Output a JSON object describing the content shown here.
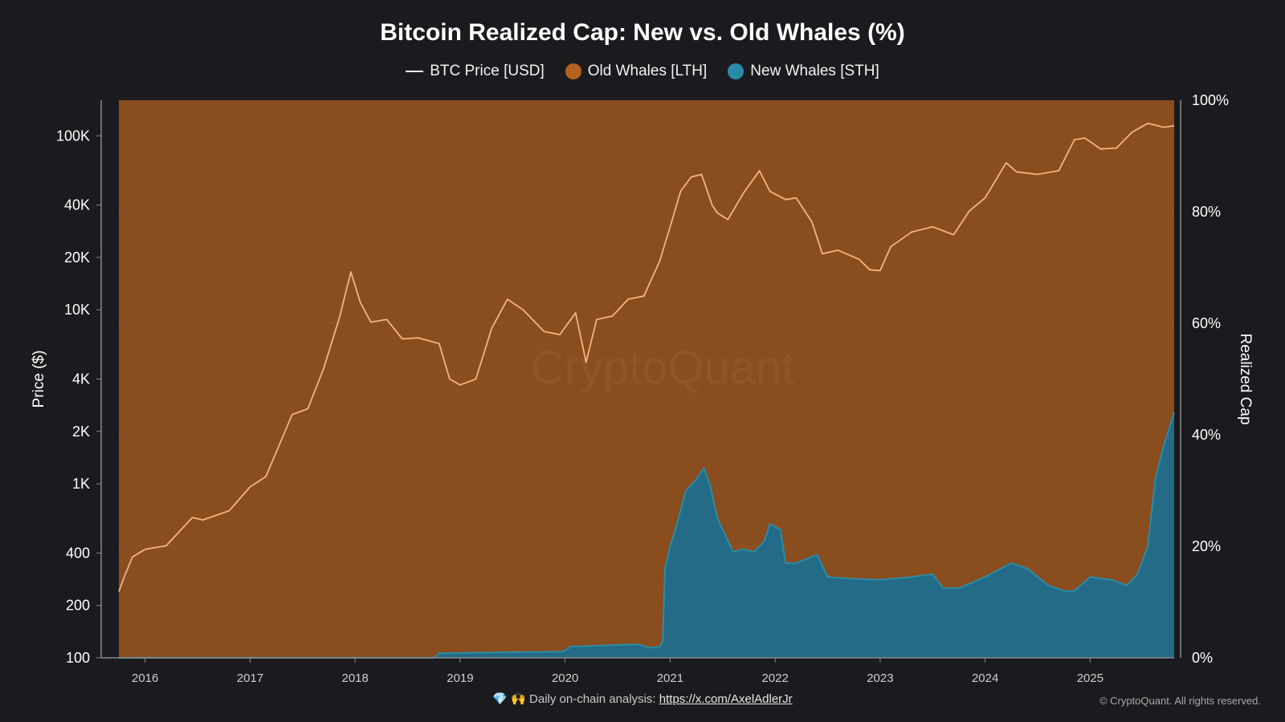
{
  "chart_data": {
    "type": "area",
    "title": "Bitcoin Realized Cap: New vs. Old Whales (%)",
    "ylabel_left": "Price ($)",
    "ylabel_right": "Realized Cap",
    "left_axis": {
      "scale": "log",
      "range": [
        100,
        160000
      ],
      "ticks": [
        {
          "value": 100,
          "label": "100"
        },
        {
          "value": 200,
          "label": "200"
        },
        {
          "value": 400,
          "label": "400"
        },
        {
          "value": 1000,
          "label": "1K"
        },
        {
          "value": 2000,
          "label": "2K"
        },
        {
          "value": 4000,
          "label": "4K"
        },
        {
          "value": 10000,
          "label": "10K"
        },
        {
          "value": 20000,
          "label": "20K"
        },
        {
          "value": 40000,
          "label": "40K"
        },
        {
          "value": 100000,
          "label": "100K"
        }
      ]
    },
    "right_axis": {
      "range": [
        0,
        100
      ],
      "ticks": [
        {
          "value": 0,
          "label": "0%"
        },
        {
          "value": 20,
          "label": "20%"
        },
        {
          "value": 40,
          "label": "40%"
        },
        {
          "value": 60,
          "label": "60%"
        },
        {
          "value": 80,
          "label": "80%"
        },
        {
          "value": 100,
          "label": "100%"
        }
      ]
    },
    "x_axis": {
      "range": [
        2015.75,
        2025.8
      ],
      "ticks": [
        {
          "value": 2016,
          "label": "2016"
        },
        {
          "value": 2017,
          "label": "2017"
        },
        {
          "value": 2018,
          "label": "2018"
        },
        {
          "value": 2019,
          "label": "2019"
        },
        {
          "value": 2020,
          "label": "2020"
        },
        {
          "value": 2021,
          "label": "2021"
        },
        {
          "value": 2022,
          "label": "2022"
        },
        {
          "value": 2023,
          "label": "2023"
        },
        {
          "value": 2024,
          "label": "2024"
        },
        {
          "value": 2025,
          "label": "2025"
        }
      ]
    },
    "legend_position": "top-center",
    "grid": true,
    "watermark": "CryptoQuant",
    "series": [
      {
        "name": "BTC Price [USD]",
        "type": "line",
        "axis": "left",
        "color": "#f7b27e",
        "x": [
          2015.75,
          2015.8,
          2015.88,
          2016.0,
          2016.2,
          2016.45,
          2016.55,
          2016.8,
          2017.0,
          2017.15,
          2017.3,
          2017.4,
          2017.55,
          2017.7,
          2017.85,
          2017.96,
          2018.05,
          2018.15,
          2018.3,
          2018.45,
          2018.6,
          2018.8,
          2018.9,
          2019.0,
          2019.15,
          2019.3,
          2019.45,
          2019.6,
          2019.8,
          2019.95,
          2020.1,
          2020.2,
          2020.3,
          2020.45,
          2020.6,
          2020.75,
          2020.9,
          2021.0,
          2021.1,
          2021.2,
          2021.3,
          2021.4,
          2021.45,
          2021.55,
          2021.7,
          2021.85,
          2021.95,
          2022.1,
          2022.2,
          2022.35,
          2022.45,
          2022.6,
          2022.8,
          2022.9,
          2023.0,
          2023.1,
          2023.3,
          2023.5,
          2023.7,
          2023.85,
          2024.0,
          2024.2,
          2024.3,
          2024.5,
          2024.7,
          2024.85,
          2024.95,
          2025.1,
          2025.25,
          2025.4,
          2025.55,
          2025.7,
          2025.8
        ],
        "y": [
          240,
          290,
          380,
          420,
          440,
          640,
          620,
          700,
          960,
          1100,
          1800,
          2500,
          2700,
          4600,
          9000,
          16500,
          11000,
          8500,
          8800,
          6800,
          6900,
          6400,
          4000,
          3700,
          4000,
          7800,
          11500,
          10000,
          7500,
          7200,
          9600,
          5000,
          8800,
          9200,
          11500,
          12000,
          19000,
          30000,
          48000,
          58000,
          60000,
          40000,
          36000,
          33000,
          47000,
          63000,
          48000,
          43000,
          44000,
          32000,
          21000,
          22000,
          19500,
          17000,
          16800,
          23000,
          28000,
          30000,
          27000,
          37000,
          44000,
          70000,
          62000,
          60000,
          63000,
          95000,
          97000,
          84000,
          85000,
          105000,
          118000,
          112000,
          114000
        ]
      },
      {
        "name": "Old Whales [LTH]",
        "type": "area",
        "axis": "right",
        "color": "#b5611f"
      },
      {
        "name": "New Whales [STH]",
        "type": "area",
        "axis": "right",
        "color": "#2a8ca8",
        "x": [
          2015.75,
          2018.75,
          2018.8,
          2019.5,
          2019.95,
          2020.0,
          2020.05,
          2020.5,
          2020.7,
          2020.8,
          2020.9,
          2020.93,
          2020.95,
          2021.0,
          2021.05,
          2021.15,
          2021.25,
          2021.32,
          2021.38,
          2021.45,
          2021.55,
          2021.6,
          2021.7,
          2021.8,
          2021.9,
          2021.95,
          2022.05,
          2022.1,
          2022.2,
          2022.4,
          2022.5,
          2022.7,
          2023.0,
          2023.3,
          2023.5,
          2023.6,
          2023.75,
          2024.0,
          2024.15,
          2024.25,
          2024.4,
          2024.6,
          2024.75,
          2024.85,
          2025.0,
          2025.2,
          2025.35,
          2025.45,
          2025.55,
          2025.62,
          2025.7,
          2025.8
        ],
        "y": [
          0,
          0,
          0.8,
          1.0,
          1.1,
          1.3,
          2.0,
          2.3,
          2.4,
          1.8,
          2.0,
          3.0,
          16.0,
          20.0,
          23.0,
          30.0,
          32.0,
          34.0,
          31.0,
          25.0,
          21.0,
          19.0,
          19.5,
          19.0,
          21.0,
          24.0,
          23.0,
          17.0,
          17.0,
          18.5,
          14.5,
          14.2,
          14.0,
          14.5,
          15.0,
          12.5,
          12.5,
          14.5,
          16.0,
          17.0,
          16.0,
          13.0,
          12.0,
          12.0,
          14.5,
          14.0,
          13.0,
          15.0,
          20.0,
          32.0,
          38.0,
          44.0
        ]
      }
    ]
  },
  "footer": {
    "icons": "💎 🙌",
    "text": "Daily on-chain analysis:",
    "link": "https://x.com/AxelAdlerJr"
  },
  "copyright": "© CryptoQuant. All rights reserved."
}
